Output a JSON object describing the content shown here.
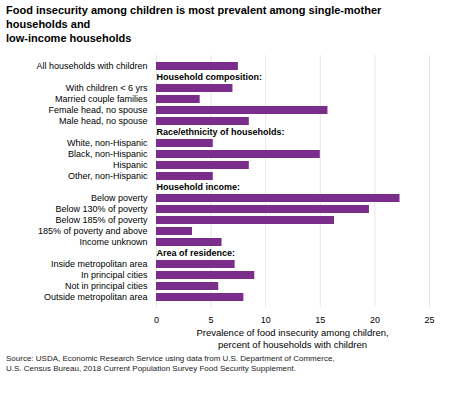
{
  "chart_data": {
    "type": "bar",
    "orientation": "horizontal",
    "title": "Food insecurity among children is most prevalent among single-mother households and\nlow-income households",
    "xlabel": "Prevalence of food insecurity among children,\npercent of households with children",
    "source": "Source: USDA, Economic Research Service using data from U.S. Department of Commerce,\nU.S. Census Bureau, 2018 Current Population Survey Food Security Supplement.",
    "categories": [
      "All households with children",
      "Household composition:",
      "With children < 6 yrs",
      "Married couple families",
      "Female head, no spouse",
      "Male head, no spouse",
      "Race/ethnicity of households:",
      "White, non-Hispanic",
      "Black, non-Hispanic",
      "Hispanic",
      "Other, non-Hispanic",
      "Household income:",
      "Below poverty",
      "Below 130% of poverty",
      "Below 185% of poverty",
      "185% of poverty and above",
      "Income unknown",
      "Area of residence:",
      "Inside metropolitan area",
      "In principal cities",
      "Not in principal cities",
      "Outside metropolitan area"
    ],
    "values": [
      7.5,
      null,
      7.0,
      4.0,
      15.7,
      8.5,
      null,
      5.2,
      15.0,
      8.5,
      5.2,
      null,
      22.3,
      19.5,
      16.3,
      3.3,
      6.0,
      null,
      7.2,
      9.0,
      5.7,
      8.0
    ],
    "color": "#7B2D8B",
    "xlim": [
      0,
      25
    ],
    "xticks": [
      0,
      5,
      10,
      15,
      20,
      25
    ],
    "grid": true
  }
}
